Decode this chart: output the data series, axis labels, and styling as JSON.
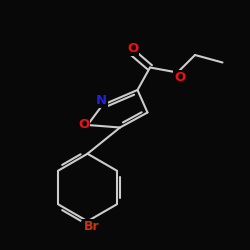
{
  "bg_color": "#080808",
  "bond_color": "#cccccc",
  "bond_lw": 1.5,
  "dbo": 0.12,
  "atom_colors": {
    "O": "#ee1111",
    "N": "#2222dd",
    "Br": "#cc3311"
  },
  "figsize": [
    2.5,
    2.5
  ],
  "dpi": 100,
  "xlim": [
    0,
    10
  ],
  "ylim": [
    0,
    10
  ]
}
